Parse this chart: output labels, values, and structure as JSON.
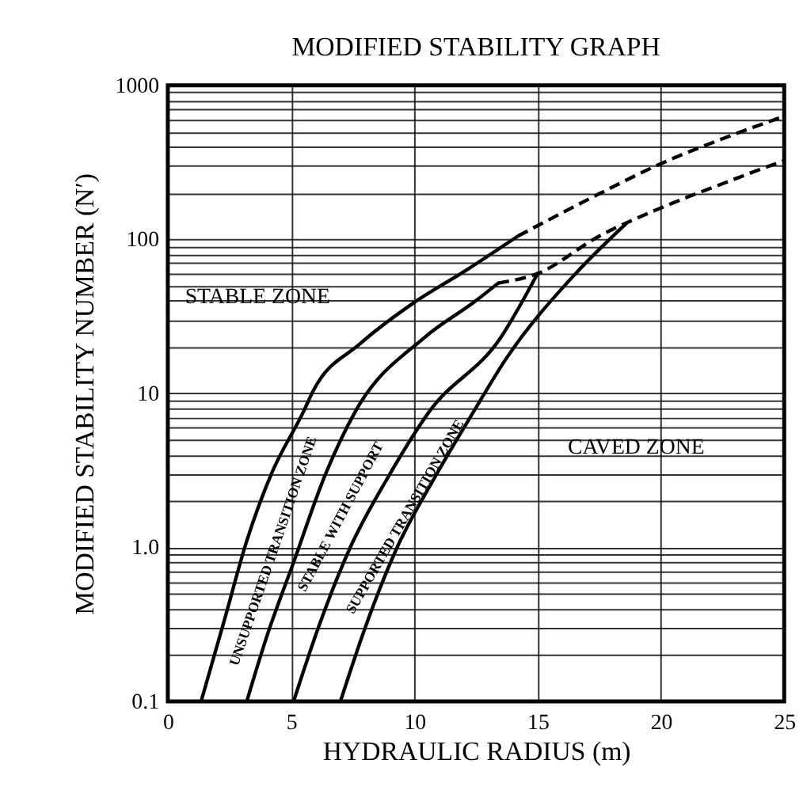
{
  "chart_data": {
    "type": "line",
    "title": "MODIFIED STABILITY GRAPH",
    "xlabel": "HYDRAULIC RADIUS (m)",
    "ylabel": "MODIFIED STABILITY NUMBER (N′)",
    "log": "y",
    "grid": true,
    "marker": "none",
    "xlim": [
      0,
      25
    ],
    "xticks": [
      0,
      5,
      10,
      15,
      20,
      25
    ],
    "ylim": [
      0.1,
      1000
    ],
    "yticks": [
      0.1,
      {
        "value": 0.2,
        "label": null
      },
      {
        "value": 0.3,
        "label": null
      },
      {
        "value": 0.4,
        "label": null
      },
      {
        "value": 0.5,
        "label": null
      },
      {
        "value": 0.6,
        "label": null
      },
      {
        "value": 0.7,
        "label": null
      },
      {
        "value": 0.8,
        "label": null
      },
      {
        "value": 0.9,
        "label": null
      },
      {
        "value": 1,
        "label": "1.0"
      },
      {
        "value": 2,
        "label": null
      },
      {
        "value": 3,
        "label": null
      },
      {
        "value": 4,
        "label": null
      },
      {
        "value": 5,
        "label": null
      },
      {
        "value": 6,
        "label": null
      },
      {
        "value": 7,
        "label": null
      },
      {
        "value": 8,
        "label": null
      },
      {
        "value": 9,
        "label": null
      },
      10,
      {
        "value": 20,
        "label": null
      },
      {
        "value": 30,
        "label": null
      },
      {
        "value": 40,
        "label": null
      },
      {
        "value": 50,
        "label": null
      },
      {
        "value": 60,
        "label": null
      },
      {
        "value": 70,
        "label": null
      },
      {
        "value": 80,
        "label": null
      },
      {
        "value": 90,
        "label": null
      },
      100,
      {
        "value": 200,
        "label": null
      },
      {
        "value": 300,
        "label": null
      },
      {
        "value": 400,
        "label": null
      },
      {
        "value": 500,
        "label": null
      },
      {
        "value": 600,
        "label": null
      },
      {
        "value": 700,
        "label": null
      },
      {
        "value": 800,
        "label": null
      },
      {
        "value": 900,
        "label": null
      },
      1000
    ],
    "series": [
      {
        "color": "#000000",
        "line_style": "solid",
        "x": [
          1.35,
          2.3,
          3.2,
          4.2,
          5.5,
          5.9,
          7.8,
          9.9,
          12.1,
          14.2
        ],
        "values": [
          0.1,
          0.34,
          1.1,
          3.0,
          7.6,
          10.4,
          21,
          38,
          63,
          105
        ]
      },
      {
        "color": "#000000",
        "line_style": "dashed",
        "x": [
          14.2,
          17,
          20,
          22.5,
          25
        ],
        "values": [
          105,
          180,
          310,
          450,
          630
        ]
      },
      {
        "color": "#000000",
        "line_style": "solid",
        "x": [
          3.2,
          4.0,
          5.1,
          6.4,
          7.6,
          10.4,
          12.5,
          13.4
        ],
        "values": [
          0.1,
          0.26,
          0.8,
          3.0,
          7.6,
          23,
          40,
          52
        ]
      },
      {
        "color": "#000000",
        "line_style": "dashed",
        "x": [
          13.4,
          15,
          17.5,
          20,
          22.5,
          25
        ],
        "values": [
          52,
          60,
          105,
          160,
          230,
          325
        ]
      },
      {
        "color": "#000000",
        "line_style": "solid",
        "x": [
          5.1,
          6.1,
          7.4,
          8.9,
          10.6,
          13.5,
          15
        ],
        "values": [
          0.1,
          0.3,
          1.0,
          2.8,
          7.6,
          23,
          60
        ]
      },
      {
        "color": "#000000",
        "line_style": "solid",
        "x": [
          7.0,
          8.0,
          9.3,
          10.8,
          12.4,
          13.7,
          16.5,
          18.6
        ],
        "values": [
          0.1,
          0.3,
          1.0,
          2.8,
          7.6,
          16.6,
          59,
          127
        ]
      }
    ],
    "annotations": [
      "STABLE ZONE",
      "CAVED ZONE",
      "UNSUPPORTED TRANSITION ZONE",
      "STABLE WITH SUPPORT",
      "SUPPORTED TRANSITION ZONE"
    ]
  }
}
